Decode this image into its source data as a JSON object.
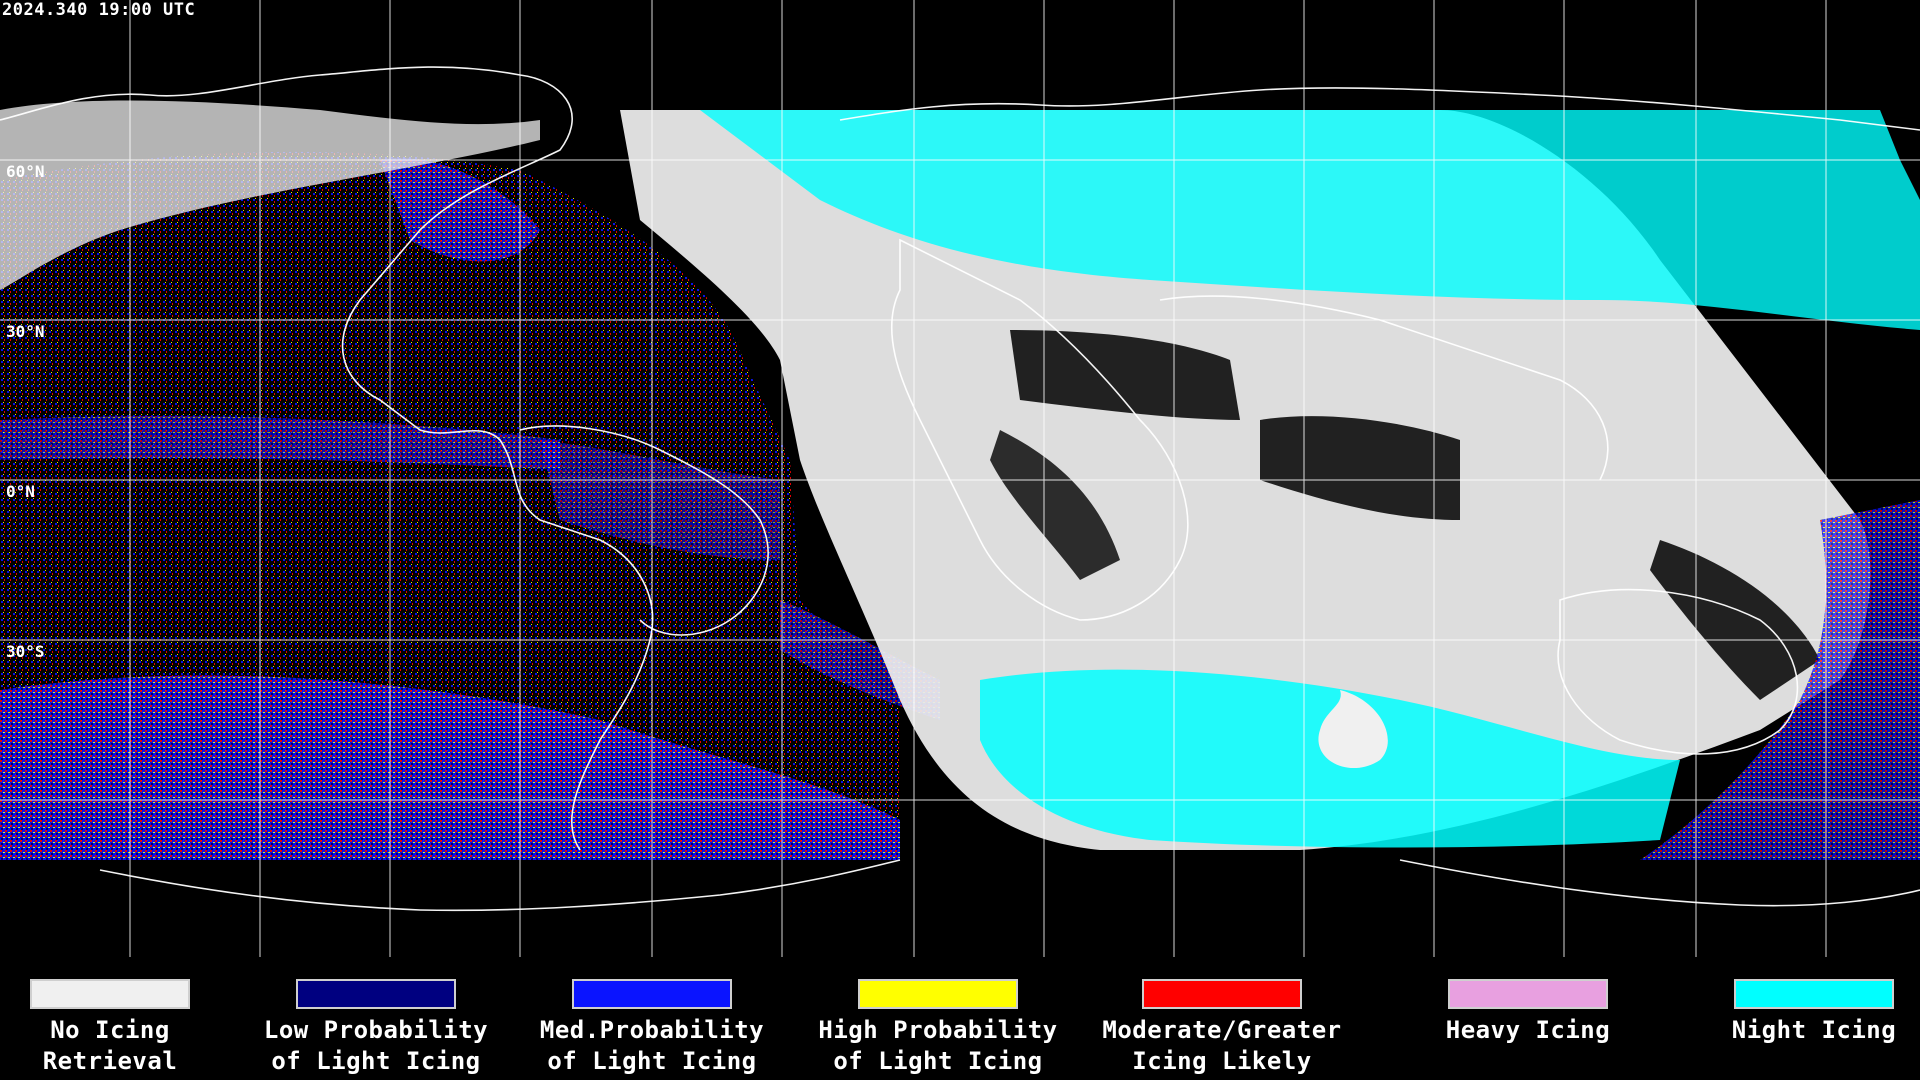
{
  "header": {
    "timestamp": "2024.340 19:00 UTC"
  },
  "latitude_labels": [
    "60°N",
    "30°N",
    "0°N",
    "30°S"
  ],
  "legend": [
    {
      "label": "No Icing\nRetrieval",
      "color": "#f0f0f0"
    },
    {
      "label": "Low Probability\nof Light Icing",
      "color": "#000080"
    },
    {
      "label": "Med.Probability\nof Light Icing",
      "color": "#0a14ff"
    },
    {
      "label": "High Probability\nof Light Icing",
      "color": "#ffff00"
    },
    {
      "label": "Moderate/Greater\nIcing Likely",
      "color": "#ff0000"
    },
    {
      "label": "Heavy Icing",
      "color": "#e8a0e0"
    },
    {
      "label": "Night Icing",
      "color": "#00ffff"
    }
  ],
  "colors": {
    "background": "#000000",
    "grid": "#ffffff",
    "coastline": "#ffffff"
  }
}
